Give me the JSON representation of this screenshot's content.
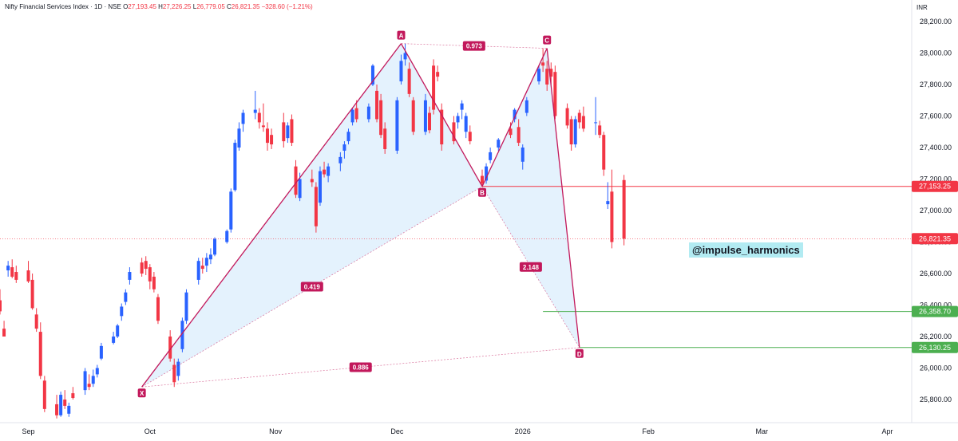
{
  "legend": {
    "symbol": "Nifty Financial Services Index · 1D · NSE",
    "open_label": "O",
    "open": "27,193.45",
    "high_label": "H",
    "high": "27,226.25",
    "low_label": "L",
    "low": "26,779.05",
    "close_label": "C",
    "close": "26,821.35",
    "change": "−328.60 (−1.21%)"
  },
  "currency": "INR",
  "watermark": "@impulse_harmonics",
  "colors": {
    "up": "#2962ff",
    "down": "#f23645",
    "pattern_line": "#c2185b",
    "pattern_fill": "#bbdefb",
    "target_line": "#4caf50",
    "resistance_line": "#f23645"
  },
  "chart_data": {
    "type": "candlestick",
    "ylim": [
      25700,
      28250
    ],
    "y_ticks": [
      "28,200.00",
      "28,000.00",
      "27,800.00",
      "27,600.00",
      "27,400.00",
      "27,200.00",
      "27,000.00",
      "26,800.00",
      "26,600.00",
      "26,400.00",
      "26,200.00",
      "26,000.00",
      "25,800.00"
    ],
    "y_tick_values": [
      28200,
      28000,
      27800,
      27600,
      27400,
      27200,
      27000,
      26800,
      26600,
      26400,
      26200,
      26000,
      25800
    ],
    "x_ticks": [
      "Sep",
      "Oct",
      "Nov",
      "Dec",
      "2026",
      "Feb",
      "Mar",
      "Apr"
    ],
    "x_tick_dates": [
      "2025-09-01",
      "2025-10-01",
      "2025-11-01",
      "2025-12-01",
      "2026-01-01",
      "2026-02-01",
      "2026-03-01",
      "2026-04-01"
    ],
    "x_range": [
      "2025-08-25",
      "2026-04-07"
    ],
    "candles": [
      [
        "2025-08-25",
        26430,
        26500,
        26340,
        26360
      ],
      [
        "2025-08-26",
        26250,
        26300,
        26200,
        26200
      ],
      [
        "2025-08-27",
        26620,
        26680,
        26580,
        26650
      ],
      [
        "2025-08-28",
        26640,
        26690,
        26570,
        26580
      ],
      [
        "2025-08-29",
        26610,
        26650,
        26540,
        26560
      ],
      [
        "2025-09-01",
        26620,
        26680,
        26540,
        26550
      ],
      [
        "2025-09-02",
        26560,
        26600,
        26370,
        26380
      ],
      [
        "2025-09-03",
        26340,
        26380,
        26230,
        26250
      ],
      [
        "2025-09-04",
        26230,
        26290,
        25930,
        25950
      ],
      [
        "2025-09-05",
        25920,
        25950,
        25720,
        25740
      ],
      [
        "2025-09-08",
        25770,
        25830,
        25680,
        25700
      ],
      [
        "2025-09-09",
        25700,
        25850,
        25690,
        25830
      ],
      [
        "2025-09-10",
        25800,
        25860,
        25740,
        25760
      ],
      [
        "2025-09-11",
        25710,
        25780,
        25690,
        25760
      ],
      [
        "2025-09-12",
        25840,
        25880,
        25800,
        25810
      ],
      [
        "2025-09-15",
        25860,
        26000,
        25830,
        25980
      ],
      [
        "2025-09-16",
        25900,
        25960,
        25860,
        25880
      ],
      [
        "2025-09-17",
        25900,
        25990,
        25880,
        25950
      ],
      [
        "2025-09-18",
        25960,
        26020,
        25940,
        26000
      ],
      [
        "2025-09-19",
        26060,
        26160,
        26050,
        26140
      ],
      [
        "2025-09-22",
        26160,
        26230,
        26150,
        26200
      ],
      [
        "2025-09-23",
        26200,
        26280,
        26190,
        26270
      ],
      [
        "2025-09-24",
        26330,
        26410,
        26300,
        26390
      ],
      [
        "2025-09-25",
        26420,
        26500,
        26400,
        26480
      ],
      [
        "2025-09-26",
        26560,
        26640,
        26530,
        26610
      ],
      [
        "2025-09-29",
        26670,
        26700,
        26580,
        26600
      ],
      [
        "2025-09-30",
        26680,
        26710,
        26590,
        26630
      ],
      [
        "2025-10-01",
        26640,
        26660,
        26500,
        26550
      ],
      [
        "2025-10-02",
        26580,
        26610,
        26480,
        26500
      ],
      [
        "2025-10-03",
        26450,
        26470,
        26280,
        26300
      ],
      [
        "2025-10-06",
        26200,
        26240,
        26040,
        26060
      ],
      [
        "2025-10-07",
        26020,
        26060,
        25880,
        25910
      ],
      [
        "2025-10-08",
        25950,
        26060,
        25920,
        26040
      ],
      [
        "2025-10-09",
        26120,
        26320,
        26100,
        26300
      ],
      [
        "2025-10-10",
        26300,
        26500,
        26280,
        26480
      ],
      [
        "2025-10-13",
        26560,
        26700,
        26530,
        26680
      ],
      [
        "2025-10-14",
        26650,
        26700,
        26600,
        26630
      ],
      [
        "2025-10-15",
        26650,
        26730,
        26610,
        26700
      ],
      [
        "2025-10-16",
        26690,
        26760,
        26660,
        26720
      ],
      [
        "2025-10-17",
        26720,
        26830,
        26710,
        26820
      ],
      [
        "2025-10-20",
        26800,
        26880,
        26790,
        26870
      ],
      [
        "2025-10-21",
        26880,
        27140,
        26860,
        27120
      ],
      [
        "2025-10-22",
        27130,
        27450,
        27120,
        27430
      ],
      [
        "2025-10-23",
        27400,
        27560,
        27380,
        27520
      ],
      [
        "2025-10-24",
        27550,
        27640,
        27500,
        27620
      ],
      [
        "2025-10-27",
        27620,
        27760,
        27580,
        27640
      ],
      [
        "2025-10-28",
        27620,
        27650,
        27520,
        27560
      ],
      [
        "2025-10-29",
        27540,
        27680,
        27500,
        27530
      ],
      [
        "2025-10-30",
        27520,
        27560,
        27380,
        27430
      ],
      [
        "2025-10-31",
        27480,
        27520,
        27390,
        27420
      ],
      [
        "2025-11-03",
        27560,
        27620,
        27400,
        27440
      ],
      [
        "2025-11-04",
        27460,
        27560,
        27430,
        27540
      ],
      [
        "2025-11-05",
        27580,
        27610,
        27410,
        27430
      ],
      [
        "2025-11-06",
        27280,
        27320,
        27080,
        27100
      ],
      [
        "2025-11-07",
        27080,
        27240,
        27060,
        27200
      ],
      [
        "2025-11-10",
        27200,
        27260,
        27150,
        27180
      ],
      [
        "2025-11-11",
        27150,
        27180,
        26860,
        26900
      ],
      [
        "2025-11-12",
        27050,
        27280,
        27030,
        27250
      ],
      [
        "2025-11-13",
        27260,
        27310,
        27210,
        27230
      ],
      [
        "2025-11-14",
        27220,
        27300,
        27180,
        27280
      ],
      [
        "2025-11-17",
        27300,
        27370,
        27250,
        27340
      ],
      [
        "2025-11-18",
        27380,
        27440,
        27330,
        27420
      ],
      [
        "2025-11-19",
        27440,
        27520,
        27420,
        27500
      ],
      [
        "2025-11-20",
        27560,
        27650,
        27540,
        27640
      ],
      [
        "2025-11-21",
        27650,
        27700,
        27560,
        27580
      ],
      [
        "2025-11-24",
        27580,
        27680,
        27560,
        27660
      ],
      [
        "2025-11-25",
        27800,
        27930,
        27790,
        27920
      ],
      [
        "2025-11-26",
        27760,
        27800,
        27560,
        27580
      ],
      [
        "2025-11-27",
        27700,
        27740,
        27460,
        27480
      ],
      [
        "2025-11-28",
        27520,
        27560,
        27360,
        27390
      ],
      [
        "2025-12-01",
        27380,
        27720,
        27360,
        27700
      ],
      [
        "2025-12-02",
        27820,
        27990,
        27800,
        27950
      ],
      [
        "2025-12-03",
        27960,
        28060,
        27920,
        28000
      ],
      [
        "2025-12-04",
        27900,
        27940,
        27720,
        27740
      ],
      [
        "2025-12-05",
        27700,
        27720,
        27480,
        27500
      ],
      [
        "2025-12-08",
        27500,
        27740,
        27480,
        27700
      ],
      [
        "2025-12-09",
        27620,
        27660,
        27490,
        27510
      ],
      [
        "2025-12-10",
        27920,
        27960,
        27610,
        27640
      ],
      [
        "2025-12-11",
        27880,
        27920,
        27820,
        27850
      ],
      [
        "2025-12-12",
        27640,
        27680,
        27380,
        27420
      ],
      [
        "2025-12-15",
        27560,
        27600,
        27420,
        27440
      ],
      [
        "2025-12-16",
        27560,
        27620,
        27520,
        27600
      ],
      [
        "2025-12-17",
        27640,
        27700,
        27580,
        27680
      ],
      [
        "2025-12-18",
        27500,
        27620,
        27460,
        27600
      ],
      [
        "2025-12-19",
        27500,
        27540,
        27420,
        27440
      ],
      [
        "2025-12-22",
        27220,
        27260,
        27150,
        27170
      ],
      [
        "2025-12-23",
        27190,
        27300,
        27170,
        27280
      ],
      [
        "2025-12-24",
        27320,
        27400,
        27300,
        27370
      ],
      [
        "2025-12-26",
        27400,
        27460,
        27380,
        27450
      ],
      [
        "2025-12-29",
        27520,
        27560,
        27460,
        27480
      ],
      [
        "2025-12-30",
        27580,
        27650,
        27560,
        27640
      ],
      [
        "2025-12-31",
        27530,
        27580,
        27410,
        27430
      ],
      [
        "2026-01-01",
        27310,
        27420,
        27260,
        27400
      ],
      [
        "2026-01-02",
        27620,
        27720,
        27600,
        27700
      ],
      [
        "2026-01-05",
        27820,
        27920,
        27800,
        27900
      ],
      [
        "2026-01-06",
        27940,
        28030,
        27880,
        27920
      ],
      [
        "2026-01-07",
        27900,
        27950,
        27760,
        27800
      ],
      [
        "2026-01-08",
        27900,
        27940,
        27800,
        27850
      ],
      [
        "2026-01-09",
        27880,
        27920,
        27580,
        27600
      ],
      [
        "2026-01-12",
        27650,
        27680,
        27520,
        27540
      ],
      [
        "2026-01-13",
        27580,
        27600,
        27380,
        27420
      ],
      [
        "2026-01-14",
        27420,
        27600,
        27400,
        27580
      ],
      [
        "2026-01-15",
        27620,
        27640,
        27520,
        27560
      ],
      [
        "2026-01-16",
        27600,
        27660,
        27500,
        27520
      ],
      [
        "2026-01-19",
        27560,
        27720,
        27480,
        27560
      ],
      [
        "2026-01-20",
        27540,
        27570,
        27460,
        27480
      ],
      [
        "2026-01-21",
        27480,
        27500,
        27220,
        27260
      ],
      [
        "2026-01-22",
        27040,
        27180,
        27010,
        27060
      ],
      [
        "2026-01-23",
        27120,
        27260,
        26760,
        26800
      ],
      [
        "2026-01-26",
        27193.45,
        27226.25,
        26779.05,
        26821.35
      ]
    ],
    "pattern": {
      "points": [
        {
          "label": "X",
          "date": "2025-09-29",
          "value": 25880
        },
        {
          "label": "A",
          "date": "2025-12-02",
          "value": 28060
        },
        {
          "label": "B",
          "date": "2025-12-22",
          "value": 27153.25
        },
        {
          "label": "C",
          "date": "2026-01-07",
          "value": 28030
        },
        {
          "label": "D",
          "date": "2026-01-15",
          "value": 26130.25
        }
      ],
      "ratios": [
        {
          "label": "0.973",
          "between": [
            "A",
            "C"
          ]
        },
        {
          "label": "0.419",
          "between": [
            "X",
            "B"
          ]
        },
        {
          "label": "2.148",
          "between": [
            "B",
            "D"
          ]
        },
        {
          "label": "0.886",
          "between": [
            "X",
            "D"
          ]
        }
      ]
    },
    "price_lines": [
      {
        "label": "27,153.25",
        "value": 27153.25,
        "color": "#f23645",
        "start": "2025-12-22"
      },
      {
        "label": "26,821.35",
        "value": 26821.35,
        "color": "#f23645",
        "dotted": true
      },
      {
        "label": "26,358.70",
        "value": 26358.7,
        "color": "#4caf50",
        "start": "2026-01-06"
      },
      {
        "label": "26,130.25",
        "value": 26130.25,
        "color": "#4caf50",
        "start": "2026-01-15"
      }
    ]
  }
}
